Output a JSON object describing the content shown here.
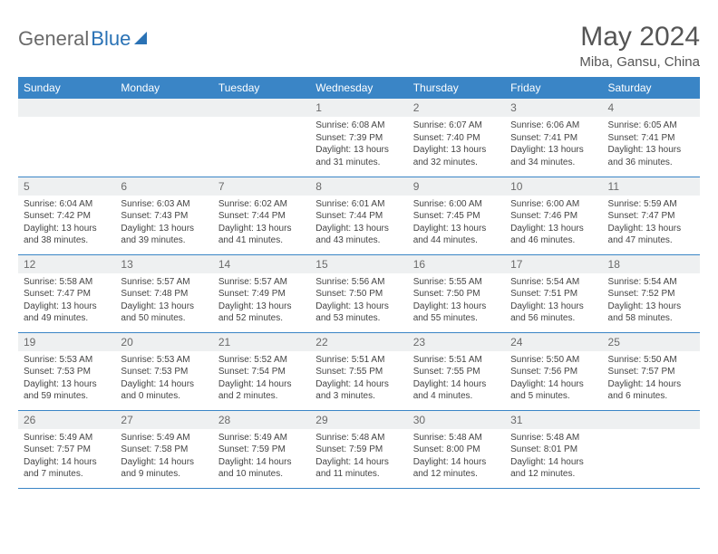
{
  "brand": {
    "part1": "General",
    "part2": "Blue"
  },
  "title": "May 2024",
  "location": "Miba, Gansu, China",
  "colors": {
    "header_bg": "#3a85c6",
    "header_text": "#ffffff",
    "daynum_bg": "#eef0f1",
    "border": "#3a85c6",
    "brand_gray": "#6a6a6a",
    "brand_blue": "#2a72b5"
  },
  "weekdays": [
    "Sunday",
    "Monday",
    "Tuesday",
    "Wednesday",
    "Thursday",
    "Friday",
    "Saturday"
  ],
  "weeks": [
    [
      null,
      null,
      null,
      {
        "d": "1",
        "sr": "6:08 AM",
        "ss": "7:39 PM",
        "dl1": "Daylight: 13 hours",
        "dl2": "and 31 minutes."
      },
      {
        "d": "2",
        "sr": "6:07 AM",
        "ss": "7:40 PM",
        "dl1": "Daylight: 13 hours",
        "dl2": "and 32 minutes."
      },
      {
        "d": "3",
        "sr": "6:06 AM",
        "ss": "7:41 PM",
        "dl1": "Daylight: 13 hours",
        "dl2": "and 34 minutes."
      },
      {
        "d": "4",
        "sr": "6:05 AM",
        "ss": "7:41 PM",
        "dl1": "Daylight: 13 hours",
        "dl2": "and 36 minutes."
      }
    ],
    [
      {
        "d": "5",
        "sr": "6:04 AM",
        "ss": "7:42 PM",
        "dl1": "Daylight: 13 hours",
        "dl2": "and 38 minutes."
      },
      {
        "d": "6",
        "sr": "6:03 AM",
        "ss": "7:43 PM",
        "dl1": "Daylight: 13 hours",
        "dl2": "and 39 minutes."
      },
      {
        "d": "7",
        "sr": "6:02 AM",
        "ss": "7:44 PM",
        "dl1": "Daylight: 13 hours",
        "dl2": "and 41 minutes."
      },
      {
        "d": "8",
        "sr": "6:01 AM",
        "ss": "7:44 PM",
        "dl1": "Daylight: 13 hours",
        "dl2": "and 43 minutes."
      },
      {
        "d": "9",
        "sr": "6:00 AM",
        "ss": "7:45 PM",
        "dl1": "Daylight: 13 hours",
        "dl2": "and 44 minutes."
      },
      {
        "d": "10",
        "sr": "6:00 AM",
        "ss": "7:46 PM",
        "dl1": "Daylight: 13 hours",
        "dl2": "and 46 minutes."
      },
      {
        "d": "11",
        "sr": "5:59 AM",
        "ss": "7:47 PM",
        "dl1": "Daylight: 13 hours",
        "dl2": "and 47 minutes."
      }
    ],
    [
      {
        "d": "12",
        "sr": "5:58 AM",
        "ss": "7:47 PM",
        "dl1": "Daylight: 13 hours",
        "dl2": "and 49 minutes."
      },
      {
        "d": "13",
        "sr": "5:57 AM",
        "ss": "7:48 PM",
        "dl1": "Daylight: 13 hours",
        "dl2": "and 50 minutes."
      },
      {
        "d": "14",
        "sr": "5:57 AM",
        "ss": "7:49 PM",
        "dl1": "Daylight: 13 hours",
        "dl2": "and 52 minutes."
      },
      {
        "d": "15",
        "sr": "5:56 AM",
        "ss": "7:50 PM",
        "dl1": "Daylight: 13 hours",
        "dl2": "and 53 minutes."
      },
      {
        "d": "16",
        "sr": "5:55 AM",
        "ss": "7:50 PM",
        "dl1": "Daylight: 13 hours",
        "dl2": "and 55 minutes."
      },
      {
        "d": "17",
        "sr": "5:54 AM",
        "ss": "7:51 PM",
        "dl1": "Daylight: 13 hours",
        "dl2": "and 56 minutes."
      },
      {
        "d": "18",
        "sr": "5:54 AM",
        "ss": "7:52 PM",
        "dl1": "Daylight: 13 hours",
        "dl2": "and 58 minutes."
      }
    ],
    [
      {
        "d": "19",
        "sr": "5:53 AM",
        "ss": "7:53 PM",
        "dl1": "Daylight: 13 hours",
        "dl2": "and 59 minutes."
      },
      {
        "d": "20",
        "sr": "5:53 AM",
        "ss": "7:53 PM",
        "dl1": "Daylight: 14 hours",
        "dl2": "and 0 minutes."
      },
      {
        "d": "21",
        "sr": "5:52 AM",
        "ss": "7:54 PM",
        "dl1": "Daylight: 14 hours",
        "dl2": "and 2 minutes."
      },
      {
        "d": "22",
        "sr": "5:51 AM",
        "ss": "7:55 PM",
        "dl1": "Daylight: 14 hours",
        "dl2": "and 3 minutes."
      },
      {
        "d": "23",
        "sr": "5:51 AM",
        "ss": "7:55 PM",
        "dl1": "Daylight: 14 hours",
        "dl2": "and 4 minutes."
      },
      {
        "d": "24",
        "sr": "5:50 AM",
        "ss": "7:56 PM",
        "dl1": "Daylight: 14 hours",
        "dl2": "and 5 minutes."
      },
      {
        "d": "25",
        "sr": "5:50 AM",
        "ss": "7:57 PM",
        "dl1": "Daylight: 14 hours",
        "dl2": "and 6 minutes."
      }
    ],
    [
      {
        "d": "26",
        "sr": "5:49 AM",
        "ss": "7:57 PM",
        "dl1": "Daylight: 14 hours",
        "dl2": "and 7 minutes."
      },
      {
        "d": "27",
        "sr": "5:49 AM",
        "ss": "7:58 PM",
        "dl1": "Daylight: 14 hours",
        "dl2": "and 9 minutes."
      },
      {
        "d": "28",
        "sr": "5:49 AM",
        "ss": "7:59 PM",
        "dl1": "Daylight: 14 hours",
        "dl2": "and 10 minutes."
      },
      {
        "d": "29",
        "sr": "5:48 AM",
        "ss": "7:59 PM",
        "dl1": "Daylight: 14 hours",
        "dl2": "and 11 minutes."
      },
      {
        "d": "30",
        "sr": "5:48 AM",
        "ss": "8:00 PM",
        "dl1": "Daylight: 14 hours",
        "dl2": "and 12 minutes."
      },
      {
        "d": "31",
        "sr": "5:48 AM",
        "ss": "8:01 PM",
        "dl1": "Daylight: 14 hours",
        "dl2": "and 12 minutes."
      },
      null
    ]
  ],
  "labels": {
    "sunrise": "Sunrise: ",
    "sunset": "Sunset: "
  }
}
